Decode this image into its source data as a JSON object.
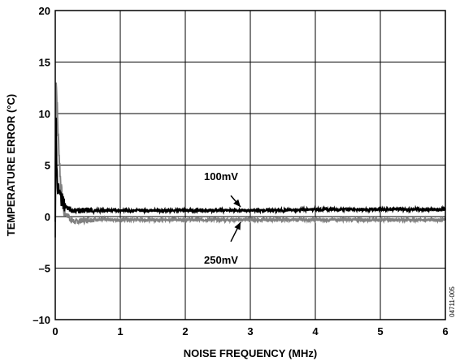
{
  "chart_data": {
    "type": "line",
    "xlabel": "NOISE FREQUENCY (MHz)",
    "ylabel": "TEMPERATURE ERROR (°C)",
    "xlim": [
      0,
      6
    ],
    "ylim": [
      -10,
      20
    ],
    "x_ticks": [
      0,
      1,
      2,
      3,
      4,
      5,
      6
    ],
    "y_ticks": [
      -10,
      -5,
      0,
      5,
      10,
      15,
      20
    ],
    "x_tick_labels": [
      "0",
      "1",
      "2",
      "3",
      "4",
      "5",
      "6"
    ],
    "y_tick_labels": [
      "–10",
      "–5",
      "0",
      "5",
      "10",
      "15",
      "20"
    ],
    "grid": true,
    "series": [
      {
        "name": "100mV",
        "color": "#000000",
        "x": [
          0,
          0.01,
          0.02,
          0.03,
          0.05,
          0.08,
          0.12,
          0.16,
          0.2,
          0.25,
          0.3,
          0.4,
          0.5,
          0.75,
          1,
          1.5,
          2,
          2.5,
          3,
          3.5,
          4,
          4.5,
          5,
          5.5,
          6
        ],
        "values": [
          0,
          11,
          5,
          3,
          2.5,
          2,
          1.5,
          1,
          0.8,
          0.6,
          0.6,
          0.6,
          0.6,
          0.6,
          0.6,
          0.6,
          0.6,
          0.6,
          0.6,
          0.6,
          0.7,
          0.7,
          0.7,
          0.7,
          0.7
        ]
      },
      {
        "name": "250mV",
        "color": "#808080",
        "x": [
          0,
          0.01,
          0.02,
          0.03,
          0.04,
          0.06,
          0.08,
          0.1,
          0.12,
          0.15,
          0.2,
          0.25,
          0.3,
          0.4,
          0.5,
          0.75,
          1,
          1.5,
          2,
          2.5,
          3,
          3.5,
          4,
          4.5,
          5,
          5.5,
          6
        ],
        "values": [
          -2,
          14,
          12,
          10.5,
          8.5,
          6,
          3.5,
          2,
          1,
          0.3,
          0,
          -0.3,
          -0.5,
          -0.4,
          -0.3,
          -0.3,
          -0.3,
          -0.3,
          -0.3,
          -0.3,
          -0.3,
          -0.3,
          -0.3,
          -0.3,
          -0.3,
          -0.3,
          -0.3
        ]
      }
    ],
    "annotations": [
      {
        "text": "100mV",
        "series": "100mV",
        "arrow_to": [
          2.85,
          0.7
        ]
      },
      {
        "text": "250mV",
        "series": "250mV",
        "arrow_to": [
          2.85,
          -0.3
        ]
      }
    ]
  },
  "figure_id": "04711-005"
}
